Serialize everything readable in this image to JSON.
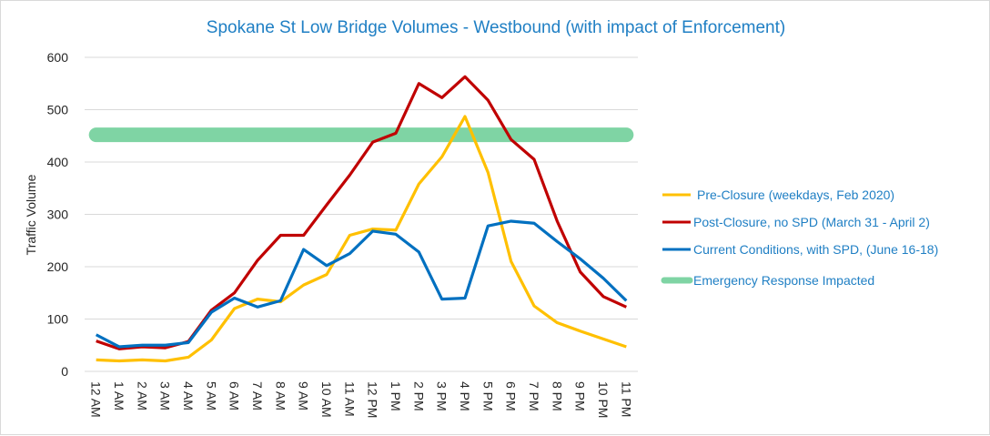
{
  "chart_data": {
    "type": "line",
    "title": "Spokane St Low Bridge Volumes - Westbound (with impact of Enforcement)",
    "xlabel": "",
    "ylabel": "Traffic Volume",
    "ylim": [
      0,
      600
    ],
    "yticks": [
      0,
      100,
      200,
      300,
      400,
      500,
      600
    ],
    "grid": true,
    "legend_position": "right",
    "categories": [
      "12 AM",
      "1 AM",
      "2 AM",
      "3 AM",
      "4 AM",
      "5 AM",
      "6 AM",
      "7 AM",
      "8 AM",
      "9 AM",
      "10 AM",
      "11 AM",
      "12 PM",
      "1 PM",
      "2 PM",
      "3 PM",
      "4 PM",
      "5 PM",
      "6 PM",
      "7 PM",
      "8 PM",
      "9 PM",
      "10 PM",
      "11 PM"
    ],
    "series": [
      {
        "name": "Pre-Closure (weekdays, Feb 2020)",
        "color": "#ffc000",
        "values": [
          22,
          20,
          22,
          20,
          27,
          60,
          120,
          138,
          133,
          165,
          185,
          260,
          272,
          270,
          358,
          410,
          487,
          380,
          210,
          125,
          93,
          77,
          62,
          47
        ]
      },
      {
        "name": "Post-Closure, no SPD (March 31 - April 2)",
        "color": "#c00000",
        "values": [
          58,
          43,
          47,
          45,
          57,
          117,
          150,
          212,
          260,
          260,
          318,
          375,
          438,
          455,
          550,
          523,
          563,
          518,
          443,
          405,
          287,
          190,
          143,
          123
        ]
      },
      {
        "name": "Current Conditions, with SPD, (June 16-18)",
        "color": "#0070c0",
        "values": [
          70,
          47,
          50,
          50,
          55,
          113,
          140,
          123,
          135,
          233,
          202,
          225,
          268,
          262,
          228,
          138,
          140,
          278,
          287,
          283,
          248,
          215,
          178,
          135
        ]
      },
      {
        "name": "Emergency Response Impacted",
        "color": "#7fd4a4",
        "values": [
          452,
          452,
          452,
          452,
          452,
          452,
          452,
          452,
          452,
          452,
          452,
          452,
          452,
          452,
          452,
          452,
          452,
          452,
          452,
          452,
          452,
          452,
          452,
          452
        ]
      }
    ]
  }
}
